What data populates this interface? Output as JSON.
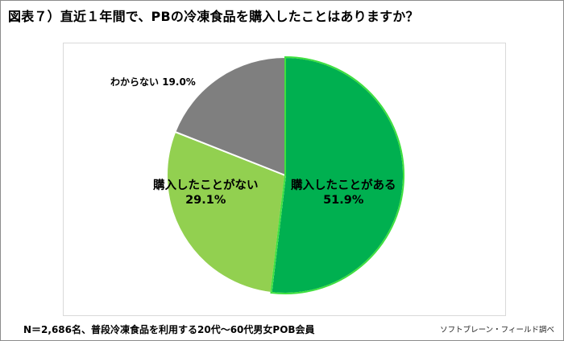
{
  "title": "図表７）直近１年間で、PBの冷凍食品を購入したことはありますか？",
  "note": "N＝2,686名、普段冷凍食品を利用する20代～60代男女POB会員",
  "source": "ソフトブレーン・フィールド調べ",
  "chart_data": {
    "type": "pie",
    "title": "図表７）直近１年間で、PBの冷凍食品を購入したことはありますか？",
    "categories": [
      "購入したことがある",
      "購入したことがない",
      "わからない"
    ],
    "values": [
      51.9,
      29.1,
      19.0
    ],
    "value_labels": [
      "51.9%",
      "29.1%",
      "19.0%"
    ],
    "colors": [
      "#00b050",
      "#92d050",
      "#7f7f7f"
    ],
    "legend": "none"
  },
  "labels": {
    "purchased_name": "購入したことがある",
    "purchased_value": "51.9%",
    "not_purchased_name": "購入したことがない",
    "not_purchased_value": "29.1%",
    "unknown_name": "わからない",
    "unknown_value": "19.0%"
  }
}
